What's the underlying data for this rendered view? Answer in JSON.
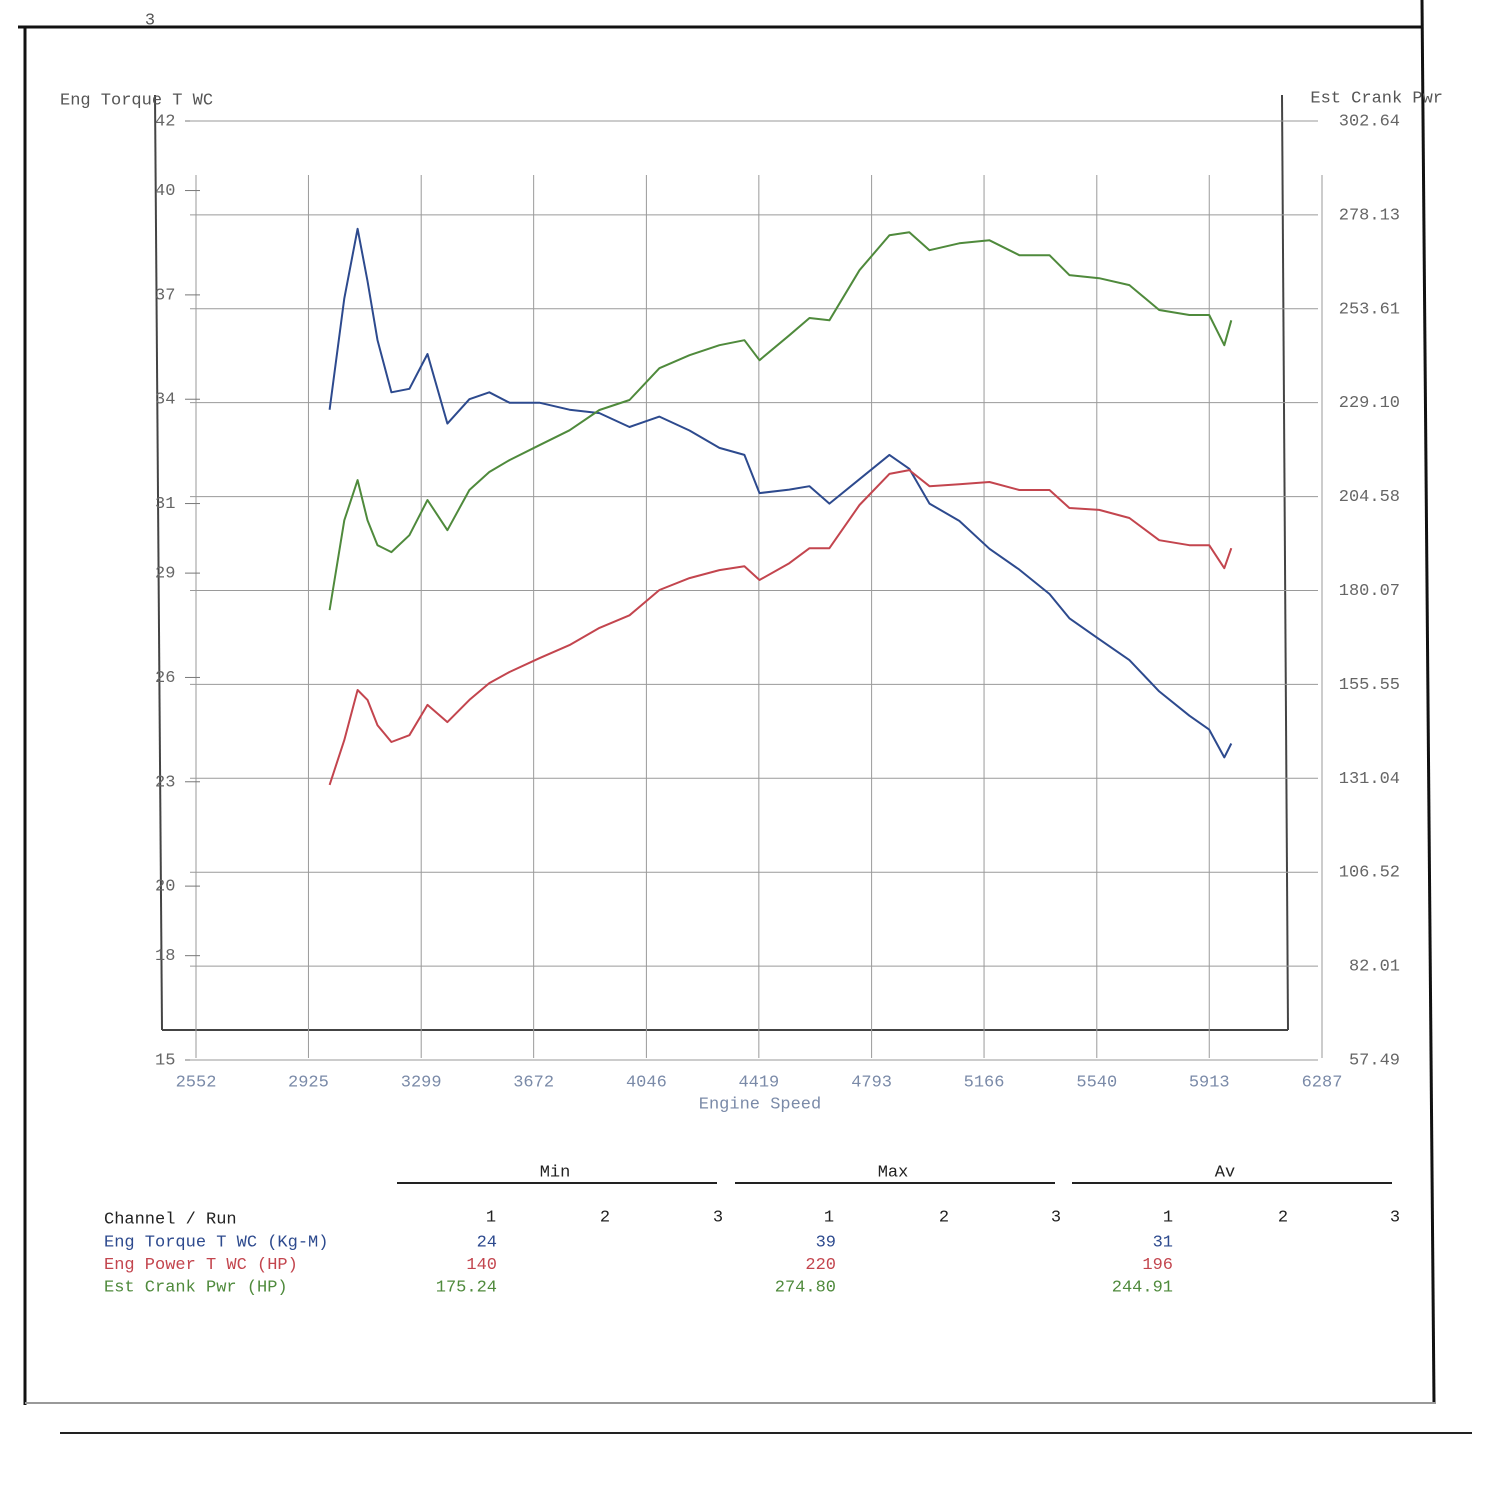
{
  "page_number": "3",
  "chart_data": {
    "type": "line",
    "y_label": "Eng Torque T WC",
    "y2_label": "Est Crank Pwr",
    "x_label": "Engine Speed",
    "xlim": [
      2552,
      6287
    ],
    "xticks": [
      2552,
      2925,
      3299,
      3672,
      4046,
      4419,
      4793,
      5166,
      5540,
      5913,
      6287
    ],
    "ylim": [
      15,
      42
    ],
    "yticks": [
      42,
      40,
      37,
      34,
      31,
      29,
      26,
      23,
      20,
      18,
      15
    ],
    "y2lim": [
      57.49,
      302.64
    ],
    "y2ticks": [
      302.64,
      278.13,
      253.61,
      {
        "value": 229.1,
        "label": "229.10"
      },
      204.58,
      180.07,
      155.55,
      131.04,
      106.52,
      82.01,
      57.49
    ],
    "grid": true,
    "x": [
      2995,
      3044,
      3088,
      3121,
      3154,
      3200,
      3260,
      3320,
      3386,
      3459,
      3525,
      3592,
      3691,
      3791,
      3890,
      3990,
      4089,
      4189,
      4288,
      4371,
      4421,
      4520,
      4587,
      4653,
      4753,
      4852,
      4918,
      4985,
      5084,
      5184,
      5283,
      5383,
      5449,
      5548,
      5648,
      5747,
      5847,
      5913,
      5963,
      5986
    ],
    "series": [
      {
        "name": "Eng Torque T WC (Kg-M)",
        "color": "#2d4a8e",
        "axis": "y",
        "values": [
          33.7,
          36.9,
          38.9,
          37.4,
          35.7,
          34.2,
          34.3,
          35.3,
          33.3,
          34.0,
          34.2,
          33.9,
          33.9,
          33.7,
          33.6,
          33.2,
          33.5,
          33.1,
          32.6,
          32.4,
          31.3,
          31.4,
          31.5,
          31.0,
          31.7,
          32.4,
          32.0,
          31.0,
          30.5,
          29.7,
          29.1,
          28.4,
          27.7,
          27.1,
          26.5,
          25.6,
          24.9,
          24.5,
          23.7,
          24.1
        ]
      },
      {
        "name": "Eng Power T WC (HP)",
        "color": "#c3454e",
        "axis": "y2",
        "values": [
          129.3,
          141.0,
          154.1,
          151.5,
          144.9,
          140.5,
          142.3,
          150.2,
          145.7,
          151.5,
          155.9,
          158.8,
          162.4,
          165.8,
          170.3,
          173.6,
          180.2,
          183.3,
          185.4,
          186.4,
          182.8,
          187.2,
          191.1,
          191.1,
          202.4,
          210.5,
          211.5,
          207.3,
          207.8,
          208.4,
          206.3,
          206.3,
          201.6,
          201.1,
          199.0,
          193.2,
          191.9,
          191.9,
          185.9,
          191.1
        ]
      },
      {
        "name": "Est Crank Pwr (HP)",
        "color": "#4f8a3c",
        "axis": "y2",
        "values": [
          174.95,
          198.4,
          208.9,
          198.4,
          191.9,
          190.1,
          194.5,
          203.7,
          195.8,
          206.3,
          211.0,
          214.1,
          218.0,
          221.9,
          227.2,
          229.8,
          238.1,
          241.5,
          244.1,
          245.4,
          240.2,
          246.7,
          251.2,
          250.6,
          263.7,
          272.8,
          273.6,
          268.9,
          270.7,
          271.5,
          267.6,
          267.6,
          262.4,
          261.6,
          259.8,
          253.3,
          252.0,
          252.0,
          244.1,
          250.6
        ]
      }
    ]
  },
  "table": {
    "header": "Channel / Run",
    "groups": [
      "Min",
      "Max",
      "Av"
    ],
    "runs": [
      "1",
      "2",
      "3"
    ],
    "rows": [
      {
        "label": "Eng Torque T WC (Kg-M)",
        "cells": [
          "24",
          "39",
          "31"
        ]
      },
      {
        "label": "Eng Power T WC (HP)",
        "cells": [
          "140",
          "220",
          "196"
        ]
      },
      {
        "label": "Est Crank Pwr (HP)",
        "cells": [
          "175.24",
          "274.80",
          "244.91"
        ]
      }
    ]
  }
}
